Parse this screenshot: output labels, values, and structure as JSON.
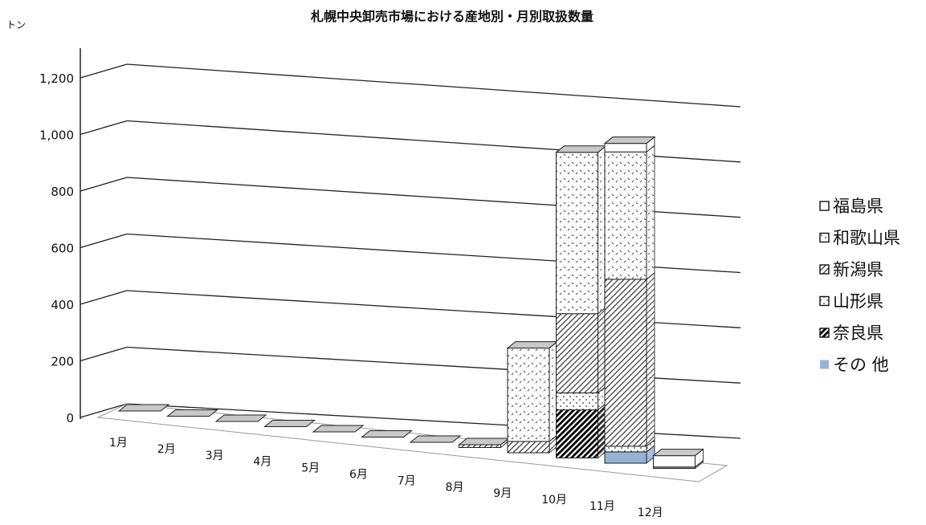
{
  "chart_data": {
    "type": "bar",
    "title": "札幌中央卸売市場における産地別・月別取扱数量",
    "unit_label": "トン",
    "ylim": [
      0,
      1200
    ],
    "yticks": [
      "0",
      "200",
      "400",
      "600",
      "800",
      "1,000",
      "1,200"
    ],
    "ytick_values": [
      0,
      200,
      400,
      600,
      800,
      1000,
      1200
    ],
    "categories": [
      "1月",
      "2月",
      "3月",
      "4月",
      "5月",
      "6月",
      "7月",
      "8月",
      "9月",
      "10月",
      "11月",
      "12月"
    ],
    "stacked": true,
    "three_d": true,
    "grid": true,
    "legend_position": "right",
    "series": [
      {
        "name": "その 他",
        "color": "#95B3D7",
        "pattern": "solid",
        "values": [
          0,
          0,
          0,
          0,
          0,
          0,
          0,
          0,
          0,
          0,
          40,
          5
        ]
      },
      {
        "name": "奈良県",
        "color": "#000000",
        "pattern": "dense-diagonal",
        "values": [
          0,
          0,
          0,
          0,
          0,
          0,
          0,
          0,
          0,
          170,
          0,
          0
        ]
      },
      {
        "name": "山形県",
        "color": "#000000",
        "pattern": "dotted-frame",
        "values": [
          0,
          0,
          0,
          0,
          0,
          0,
          0,
          0,
          0,
          60,
          20,
          0
        ]
      },
      {
        "name": "新潟県",
        "color": "#000000",
        "pattern": "diagonal",
        "values": [
          0,
          0,
          0,
          0,
          0,
          0,
          0,
          10,
          40,
          280,
          590,
          0
        ]
      },
      {
        "name": "和歌山県",
        "color": "#000000",
        "pattern": "dots",
        "values": [
          0,
          0,
          0,
          0,
          0,
          0,
          0,
          0,
          330,
          570,
          450,
          0
        ]
      },
      {
        "name": "福島県",
        "color": "#000000",
        "pattern": "hollow",
        "values": [
          0,
          0,
          0,
          0,
          0,
          0,
          0,
          0,
          0,
          0,
          30,
          40
        ]
      }
    ],
    "legend_order": [
      "福島県",
      "和歌山県",
      "新潟県",
      "山形県",
      "奈良県",
      "その 他"
    ]
  }
}
